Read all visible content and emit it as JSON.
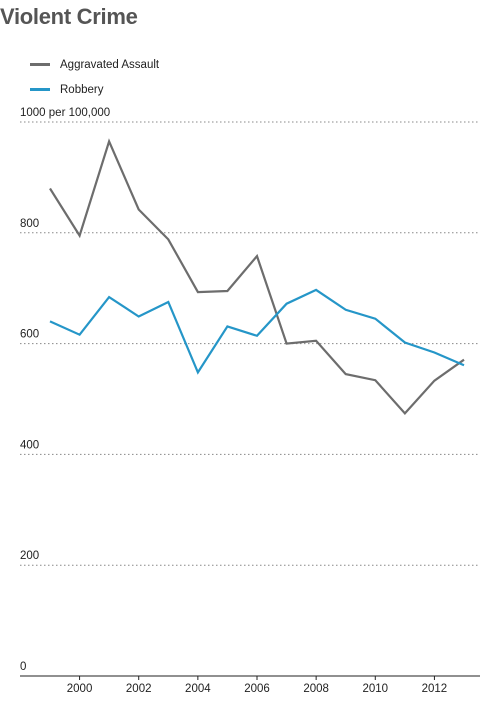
{
  "title": "Violent Crime",
  "colors": {
    "aggravated_assault": "#6d6d6d",
    "robbery": "#2596c8",
    "grid": "#888888",
    "axis": "#222222"
  },
  "chart_data": {
    "type": "line",
    "title": "Violent Crime",
    "xlabel": "",
    "ylabel": "",
    "ylim": [
      0,
      1000
    ],
    "xlim": [
      1999,
      2013
    ],
    "y_ticks": [
      0,
      200,
      400,
      600,
      800,
      1000
    ],
    "y_tick_labels": [
      "0",
      "200",
      "400",
      "600",
      "800",
      "1000 per 100,000"
    ],
    "x_ticks": [
      2000,
      2002,
      2004,
      2006,
      2008,
      2010,
      2012
    ],
    "x_tick_labels": [
      "2000",
      "2002",
      "2004",
      "2006",
      "2008",
      "2010",
      "2012"
    ],
    "grid": "horizontal dotted",
    "legend_position": "top-left",
    "x": [
      1999,
      2000,
      2001,
      2002,
      2003,
      2004,
      2005,
      2006,
      2007,
      2008,
      2009,
      2010,
      2011,
      2012,
      2013
    ],
    "series": [
      {
        "name": "Aggravated Assault",
        "color": "#6d6d6d",
        "values": [
          880,
          795,
          965,
          842,
          788,
          693,
          695,
          758,
          600,
          605,
          545,
          534,
          474,
          533,
          571
        ]
      },
      {
        "name": "Robbery",
        "color": "#2596c8",
        "values": [
          640,
          616,
          684,
          649,
          675,
          548,
          631,
          614,
          672,
          697,
          661,
          645,
          602,
          584,
          561
        ]
      }
    ]
  }
}
